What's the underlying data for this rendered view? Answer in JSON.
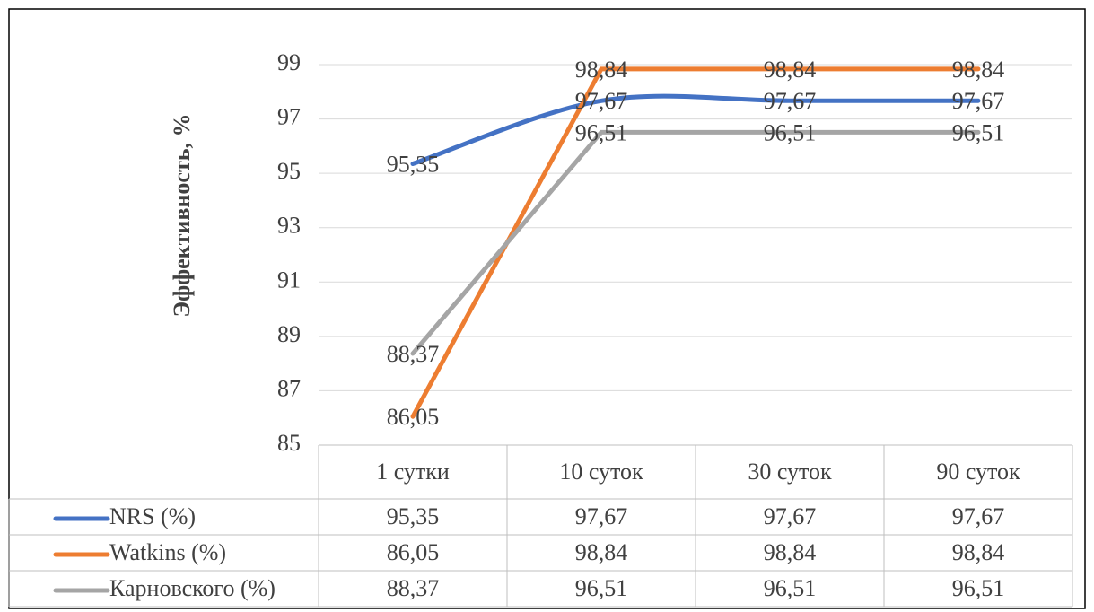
{
  "chart_data": {
    "type": "line",
    "y_axis_label": "Эффективность, %",
    "categories": [
      "1 сутки",
      "10 суток",
      "30 суток",
      "90 суток"
    ],
    "series": [
      {
        "name": "NRS (%)",
        "color": "#4472c4",
        "smooth": true,
        "values": [
          95.35,
          97.67,
          97.67,
          97.67
        ],
        "value_labels": [
          "95,35",
          "97,67",
          "97,67",
          "97,67"
        ]
      },
      {
        "name": "Watkins (%)",
        "color": "#ed7d31",
        "smooth": false,
        "values": [
          86.05,
          98.84,
          98.84,
          98.84
        ],
        "value_labels": [
          "86,05",
          "98,84",
          "98,84",
          "98,84"
        ]
      },
      {
        "name": "Карновского (%)",
        "color": "#a5a5a5",
        "smooth": false,
        "values": [
          88.37,
          96.51,
          96.51,
          96.51
        ],
        "value_labels": [
          "88,37",
          "96,51",
          "96,51",
          "96,51"
        ]
      }
    ],
    "ylim": [
      85,
      99
    ],
    "yticks": [
      85,
      87,
      89,
      91,
      93,
      95,
      97,
      99
    ],
    "grid": true,
    "data_table": true
  }
}
